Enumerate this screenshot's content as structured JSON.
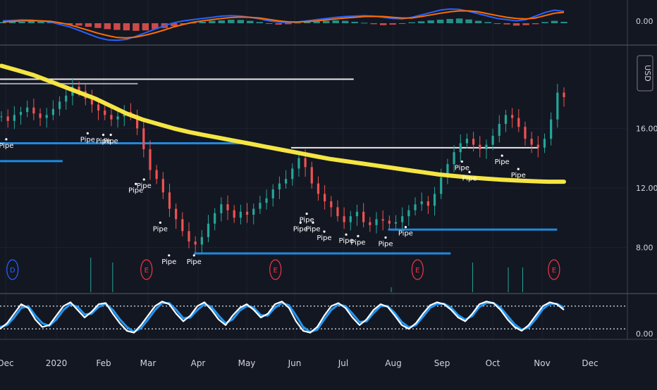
{
  "chart_data": [
    {
      "type": "bar",
      "panel": "macd",
      "price_axis_label": "0.00",
      "histogram": [
        0.05,
        0.08,
        0.06,
        0.1,
        0.07,
        0.04,
        -0.02,
        -0.05,
        -0.1,
        -0.15,
        -0.2,
        -0.25,
        -0.28,
        -0.3,
        -0.32,
        -0.3,
        -0.25,
        -0.2,
        -0.12,
        -0.05,
        0.02,
        0.06,
        0.1,
        0.12,
        0.15,
        0.14,
        0.1,
        0.05,
        -0.02,
        -0.06,
        -0.04,
        0.02,
        0.06,
        0.08,
        0.1,
        0.12,
        0.1,
        0.06,
        0.02,
        -0.04,
        -0.08,
        -0.06,
        -0.02,
        0.04,
        0.08,
        0.12,
        0.15,
        0.18,
        0.2,
        0.16,
        0.1,
        0.05,
        0.0,
        -0.05,
        -0.1,
        -0.08,
        -0.04,
        0.05,
        0.1,
        0.06
      ],
      "series": [
        {
          "name": "",
          "color": "#2962ff",
          "values": [
            0.1,
            0.12,
            0.14,
            0.13,
            0.1,
            0.05,
            -0.05,
            -0.15,
            -0.3,
            -0.45,
            -0.6,
            -0.7,
            -0.72,
            -0.68,
            -0.55,
            -0.4,
            -0.25,
            -0.1,
            0.02,
            0.1,
            0.15,
            0.2,
            0.25,
            0.3,
            0.32,
            0.3,
            0.25,
            0.18,
            0.1,
            0.05,
            0.02,
            0.05,
            0.1,
            0.15,
            0.2,
            0.25,
            0.28,
            0.3,
            0.32,
            0.3,
            0.25,
            0.2,
            0.18,
            0.25,
            0.35,
            0.45,
            0.55,
            0.6,
            0.58,
            0.5,
            0.4,
            0.3,
            0.2,
            0.15,
            0.1,
            0.15,
            0.3,
            0.45,
            0.55,
            0.5
          ]
        },
        {
          "name": "",
          "color": "#ff6d00",
          "values": [
            0.05,
            0.08,
            0.1,
            0.11,
            0.1,
            0.08,
            0.02,
            -0.06,
            -0.18,
            -0.3,
            -0.42,
            -0.52,
            -0.6,
            -0.62,
            -0.58,
            -0.5,
            -0.4,
            -0.28,
            -0.15,
            -0.05,
            0.04,
            0.1,
            0.15,
            0.2,
            0.24,
            0.26,
            0.25,
            0.22,
            0.16,
            0.1,
            0.06,
            0.05,
            0.07,
            0.1,
            0.14,
            0.18,
            0.22,
            0.25,
            0.28,
            0.29,
            0.28,
            0.25,
            0.22,
            0.22,
            0.28,
            0.35,
            0.42,
            0.48,
            0.52,
            0.52,
            0.48,
            0.4,
            0.32,
            0.25,
            0.2,
            0.18,
            0.22,
            0.32,
            0.42,
            0.46
          ]
        }
      ]
    },
    {
      "type": "candlestick",
      "panel": "price",
      "price_axis_labels": [
        "16.00",
        "12.00",
        "8.00"
      ],
      "price_ticks": [
        16,
        12,
        8
      ],
      "ylim": [
        5.0,
        21.5
      ],
      "currency_label": "USD",
      "closes": [
        16.8,
        16.5,
        16.9,
        17.1,
        17.4,
        17.0,
        16.7,
        16.9,
        17.3,
        17.8,
        18.2,
        18.8,
        18.5,
        18.0,
        17.6,
        17.2,
        16.9,
        16.6,
        16.8,
        17.1,
        16.9,
        16.0,
        14.6,
        13.2,
        12.6,
        11.7,
        10.6,
        9.9,
        9.1,
        8.4,
        8.2,
        8.7,
        9.6,
        10.3,
        10.9,
        10.5,
        10.0,
        10.4,
        10.2,
        10.6,
        11.0,
        11.3,
        11.9,
        12.3,
        12.6,
        13.3,
        14.0,
        13.4,
        12.3,
        11.6,
        11.1,
        10.7,
        10.1,
        9.7,
        10.1,
        10.4,
        9.7,
        9.5,
        9.9,
        9.8,
        9.6,
        9.7,
        10.1,
        10.5,
        10.9,
        11.1,
        10.8,
        11.6,
        12.7,
        13.6,
        14.4,
        15.0,
        15.3,
        14.9,
        14.6,
        14.9,
        15.5,
        16.3,
        16.9,
        16.7,
        16.1,
        15.3,
        14.9,
        14.7,
        15.3,
        16.6,
        18.4,
        18.1
      ],
      "moving_average": {
        "color": "#f4e542",
        "values": [
          20.2,
          19.9,
          19.6,
          19.2,
          18.8,
          18.4,
          18.0,
          17.5,
          17.0,
          16.6,
          16.3,
          16.0,
          15.75,
          15.55,
          15.35,
          15.15,
          14.95,
          14.75,
          14.55,
          14.35,
          14.15,
          13.95,
          13.8,
          13.65,
          13.5,
          13.35,
          13.2,
          13.05,
          12.9,
          12.8,
          12.7,
          12.62,
          12.55,
          12.5,
          12.45,
          12.42,
          12.42
        ]
      },
      "horizontal_levels": [
        {
          "y": 19.3,
          "x0": 0,
          "x1": 0.565,
          "color": "#ffffff"
        },
        {
          "y": 19.0,
          "x0": 0,
          "x1": 0.22,
          "color": "#b2b5be"
        },
        {
          "y": 14.7,
          "x0": 0.465,
          "x1": 0.86,
          "color": "#ffffff"
        },
        {
          "y": 15.0,
          "x0": 0,
          "x1": 0.4,
          "color": "#2196f3"
        },
        {
          "y": 13.8,
          "x0": 0,
          "x1": 0.1,
          "color": "#2196f3"
        },
        {
          "y": 9.2,
          "x0": 0.62,
          "x1": 0.89,
          "color": "#2196f3"
        },
        {
          "y": 7.6,
          "x0": 0.31,
          "x1": 0.72,
          "color": "#2196f3"
        }
      ],
      "annotations": [
        {
          "text": "Pipe",
          "x": 0.01,
          "y": 14.7
        },
        {
          "text": "Pipe",
          "x": 0.14,
          "y": 15.1
        },
        {
          "text": "Pipe",
          "x": 0.165,
          "y": 15.0
        },
        {
          "text": "Pipe",
          "x": 0.177,
          "y": 15.0
        },
        {
          "text": "Pipe",
          "x": 0.217,
          "y": 11.7
        },
        {
          "text": "Pipe",
          "x": 0.23,
          "y": 12.0
        },
        {
          "text": "Pipe",
          "x": 0.256,
          "y": 9.1
        },
        {
          "text": "Pipe",
          "x": 0.27,
          "y": 6.9
        },
        {
          "text": "Pipe",
          "x": 0.31,
          "y": 6.9
        },
        {
          "text": "Pipe",
          "x": 0.48,
          "y": 9.1
        },
        {
          "text": "Pipe",
          "x": 0.49,
          "y": 9.7
        },
        {
          "text": "Pipe",
          "x": 0.5,
          "y": 9.1
        },
        {
          "text": "Pipe",
          "x": 0.518,
          "y": 8.5
        },
        {
          "text": "Pipe",
          "x": 0.553,
          "y": 8.3
        },
        {
          "text": "Pipe",
          "x": 0.572,
          "y": 8.2
        },
        {
          "text": "Pipe",
          "x": 0.616,
          "y": 8.1
        },
        {
          "text": "Pipe",
          "x": 0.648,
          "y": 8.8
        },
        {
          "text": "Pipe",
          "x": 0.738,
          "y": 13.2
        },
        {
          "text": "Pipe",
          "x": 0.75,
          "y": 12.5
        },
        {
          "text": "Pipe",
          "x": 0.802,
          "y": 13.6
        },
        {
          "text": "Pipe",
          "x": 0.828,
          "y": 12.7
        }
      ],
      "volume_spikes": [
        {
          "x": 0.145,
          "h": 0.14,
          "color": "#26a69a"
        },
        {
          "x": 0.18,
          "h": 0.12,
          "color": "#26a69a"
        },
        {
          "x": 0.755,
          "h": 0.12,
          "color": "#26a69a"
        },
        {
          "x": 0.812,
          "h": 0.1,
          "color": "#26a69a"
        },
        {
          "x": 0.835,
          "h": 0.1,
          "color": "#26a69a"
        },
        {
          "x": 0.625,
          "h": 0.02,
          "color": "#26a69a"
        }
      ],
      "event_markers": [
        {
          "label": "D",
          "x": 0.02,
          "color": "#2962ff"
        },
        {
          "label": "E",
          "x": 0.234,
          "color": "#f23645"
        },
        {
          "label": "E",
          "x": 0.44,
          "color": "#f23645"
        },
        {
          "label": "E",
          "x": 0.667,
          "color": "#f23645"
        },
        {
          "label": "E",
          "x": 0.885,
          "color": "#f23645"
        }
      ]
    },
    {
      "type": "line",
      "panel": "stochastic",
      "price_axis_label": "0.00",
      "ylim": [
        0,
        100
      ],
      "band_upper": 80,
      "band_lower": 20,
      "series": [
        {
          "name": "",
          "color": "#ffffff",
          "values": [
            20,
            35,
            60,
            85,
            75,
            45,
            25,
            30,
            55,
            80,
            90,
            70,
            50,
            65,
            85,
            88,
            60,
            35,
            15,
            10,
            30,
            55,
            80,
            92,
            85,
            60,
            40,
            55,
            80,
            90,
            70,
            45,
            30,
            55,
            75,
            85,
            70,
            50,
            60,
            85,
            92,
            75,
            40,
            15,
            10,
            25,
            55,
            80,
            88,
            75,
            50,
            30,
            45,
            70,
            85,
            78,
            55,
            30,
            20,
            35,
            60,
            82,
            90,
            85,
            70,
            50,
            40,
            60,
            85,
            92,
            88,
            70,
            45,
            25,
            15,
            30,
            55,
            80,
            90,
            85,
            70
          ]
        },
        {
          "name": "",
          "color": "#2196f3",
          "values": [
            25,
            30,
            50,
            75,
            80,
            55,
            35,
            28,
            45,
            70,
            85,
            78,
            58,
            60,
            78,
            86,
            70,
            45,
            25,
            12,
            22,
            45,
            70,
            88,
            88,
            70,
            48,
            50,
            70,
            85,
            78,
            55,
            35,
            45,
            68,
            80,
            76,
            56,
            55,
            76,
            88,
            82,
            55,
            25,
            12,
            18,
            45,
            70,
            84,
            80,
            60,
            38,
            40,
            62,
            80,
            80,
            62,
            38,
            24,
            30,
            52,
            75,
            86,
            86,
            76,
            56,
            44,
            54,
            78,
            88,
            88,
            76,
            54,
            32,
            18,
            24,
            46,
            72,
            86,
            86,
            76
          ]
        }
      ]
    }
  ],
  "x_axis": {
    "labels": [
      "Dec",
      "2020",
      "Feb",
      "Mar",
      "Apr",
      "May",
      "Jun",
      "Jul",
      "Aug",
      "Sep",
      "Oct",
      "Nov",
      "Dec"
    ]
  }
}
